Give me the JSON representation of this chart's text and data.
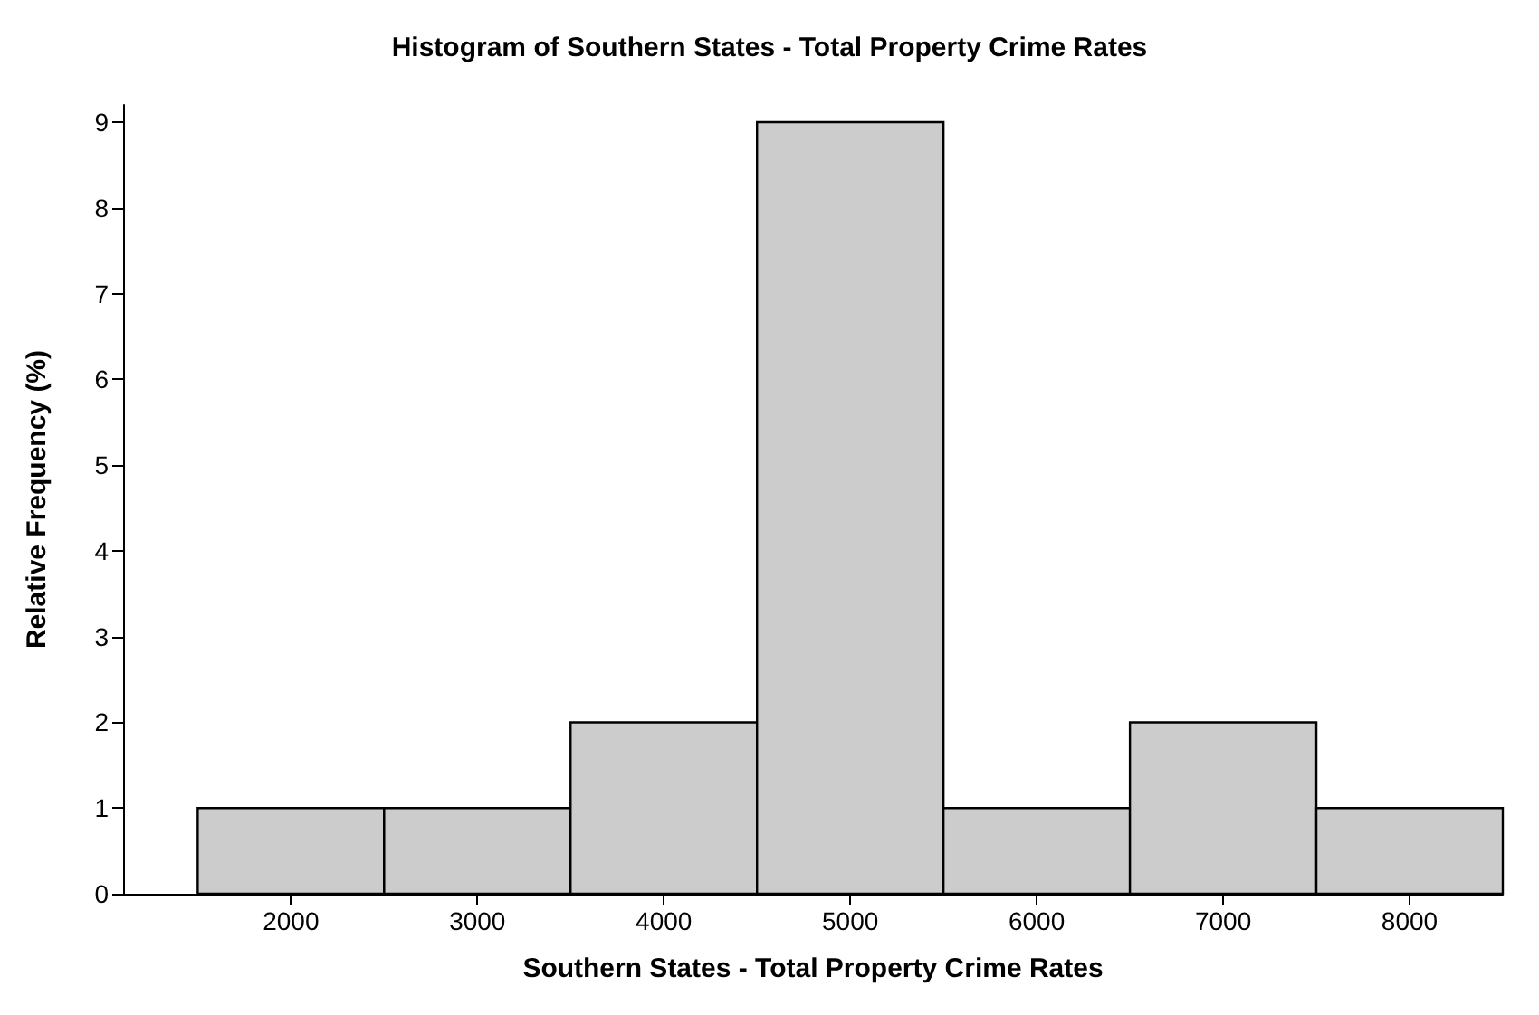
{
  "chart_data": {
    "type": "histogram",
    "title": "Histogram of Southern States - Total Property Crime Rates",
    "xlabel": "Southern States - Total Property Crime Rates",
    "ylabel": "Relative Frequency (%)",
    "bins": [
      1500,
      2500,
      3500,
      4500,
      5500,
      6500,
      7500,
      8500
    ],
    "values": [
      1,
      1,
      2,
      9,
      1,
      2,
      1
    ],
    "color": "#cccccc",
    "xlim": [
      1100,
      8500
    ],
    "xticks": [
      2000,
      3000,
      4000,
      5000,
      6000,
      7000,
      8000
    ],
    "ylim": [
      0,
      9.2
    ],
    "yticks": [
      0,
      1,
      2,
      3,
      4,
      5,
      6,
      7,
      8,
      9
    ],
    "grid": false
  }
}
